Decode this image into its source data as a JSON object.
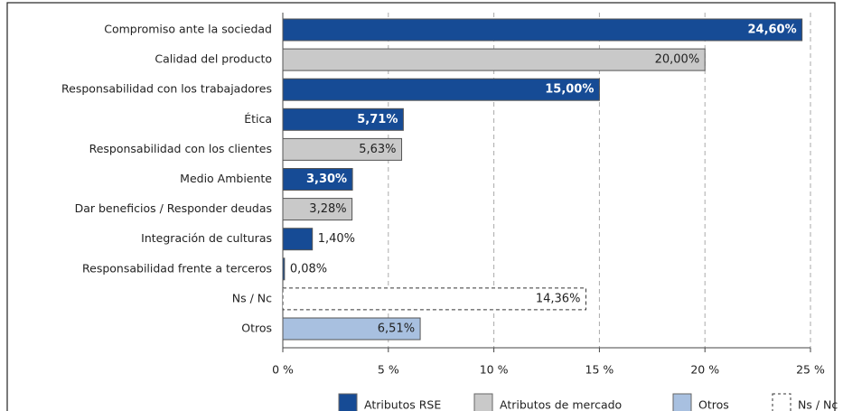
{
  "chart_data": {
    "type": "barh",
    "categories": [
      "Compromiso ante la sociedad",
      "Calidad del producto",
      "Responsabilidad con los trabajadores",
      "Ética",
      "Responsabilidad con los clientes",
      "Medio Ambiente",
      "Dar beneficios / Responder deudas",
      "Integración de culturas",
      "Responsabilidad frente a terceros",
      "Ns / Nc",
      "Otros"
    ],
    "series": [
      {
        "name": "Atributos RSE",
        "color": "#164b95",
        "label_color": "#ffffff",
        "values": [
          24.6,
          null,
          15.0,
          5.71,
          null,
          3.3,
          null,
          1.4,
          0.08,
          null,
          null
        ],
        "value_labels": [
          "24,60%",
          null,
          "15,00%",
          "5,71%",
          null,
          "3,30%",
          null,
          "1,40%",
          "0,08%",
          null,
          null
        ]
      },
      {
        "name": "Atributos de mercado",
        "color": "#c9c9c9",
        "label_color": "#222222",
        "values": [
          null,
          20.0,
          null,
          null,
          5.63,
          null,
          3.28,
          null,
          null,
          null,
          null
        ],
        "value_labels": [
          null,
          "20,00%",
          null,
          null,
          "5,63%",
          null,
          "3,28%",
          null,
          null,
          null,
          null
        ]
      },
      {
        "name": "Otros",
        "color": "#a8c0e0",
        "label_color": "#222222",
        "values": [
          null,
          null,
          null,
          null,
          null,
          null,
          null,
          null,
          null,
          null,
          6.51
        ],
        "value_labels": [
          null,
          null,
          null,
          null,
          null,
          null,
          null,
          null,
          null,
          null,
          "6,51%"
        ]
      },
      {
        "name": "Ns / Nc",
        "color": "#ffffff",
        "label_color": "#222222",
        "dashed": true,
        "values": [
          null,
          null,
          null,
          null,
          null,
          null,
          null,
          null,
          null,
          14.36,
          null
        ],
        "value_labels": [
          null,
          null,
          null,
          null,
          null,
          null,
          null,
          null,
          null,
          "14,36%",
          null
        ]
      }
    ],
    "xlim": [
      0,
      25
    ],
    "xticks": [
      {
        "value": 0,
        "label": "0 %"
      },
      {
        "value": 5,
        "label": "5 %"
      },
      {
        "value": 10,
        "label": "10 %"
      },
      {
        "value": 15,
        "label": "15 %"
      },
      {
        "value": 20,
        "label": "20 %"
      },
      {
        "value": 25,
        "label": "25 %"
      }
    ],
    "grid": true
  }
}
